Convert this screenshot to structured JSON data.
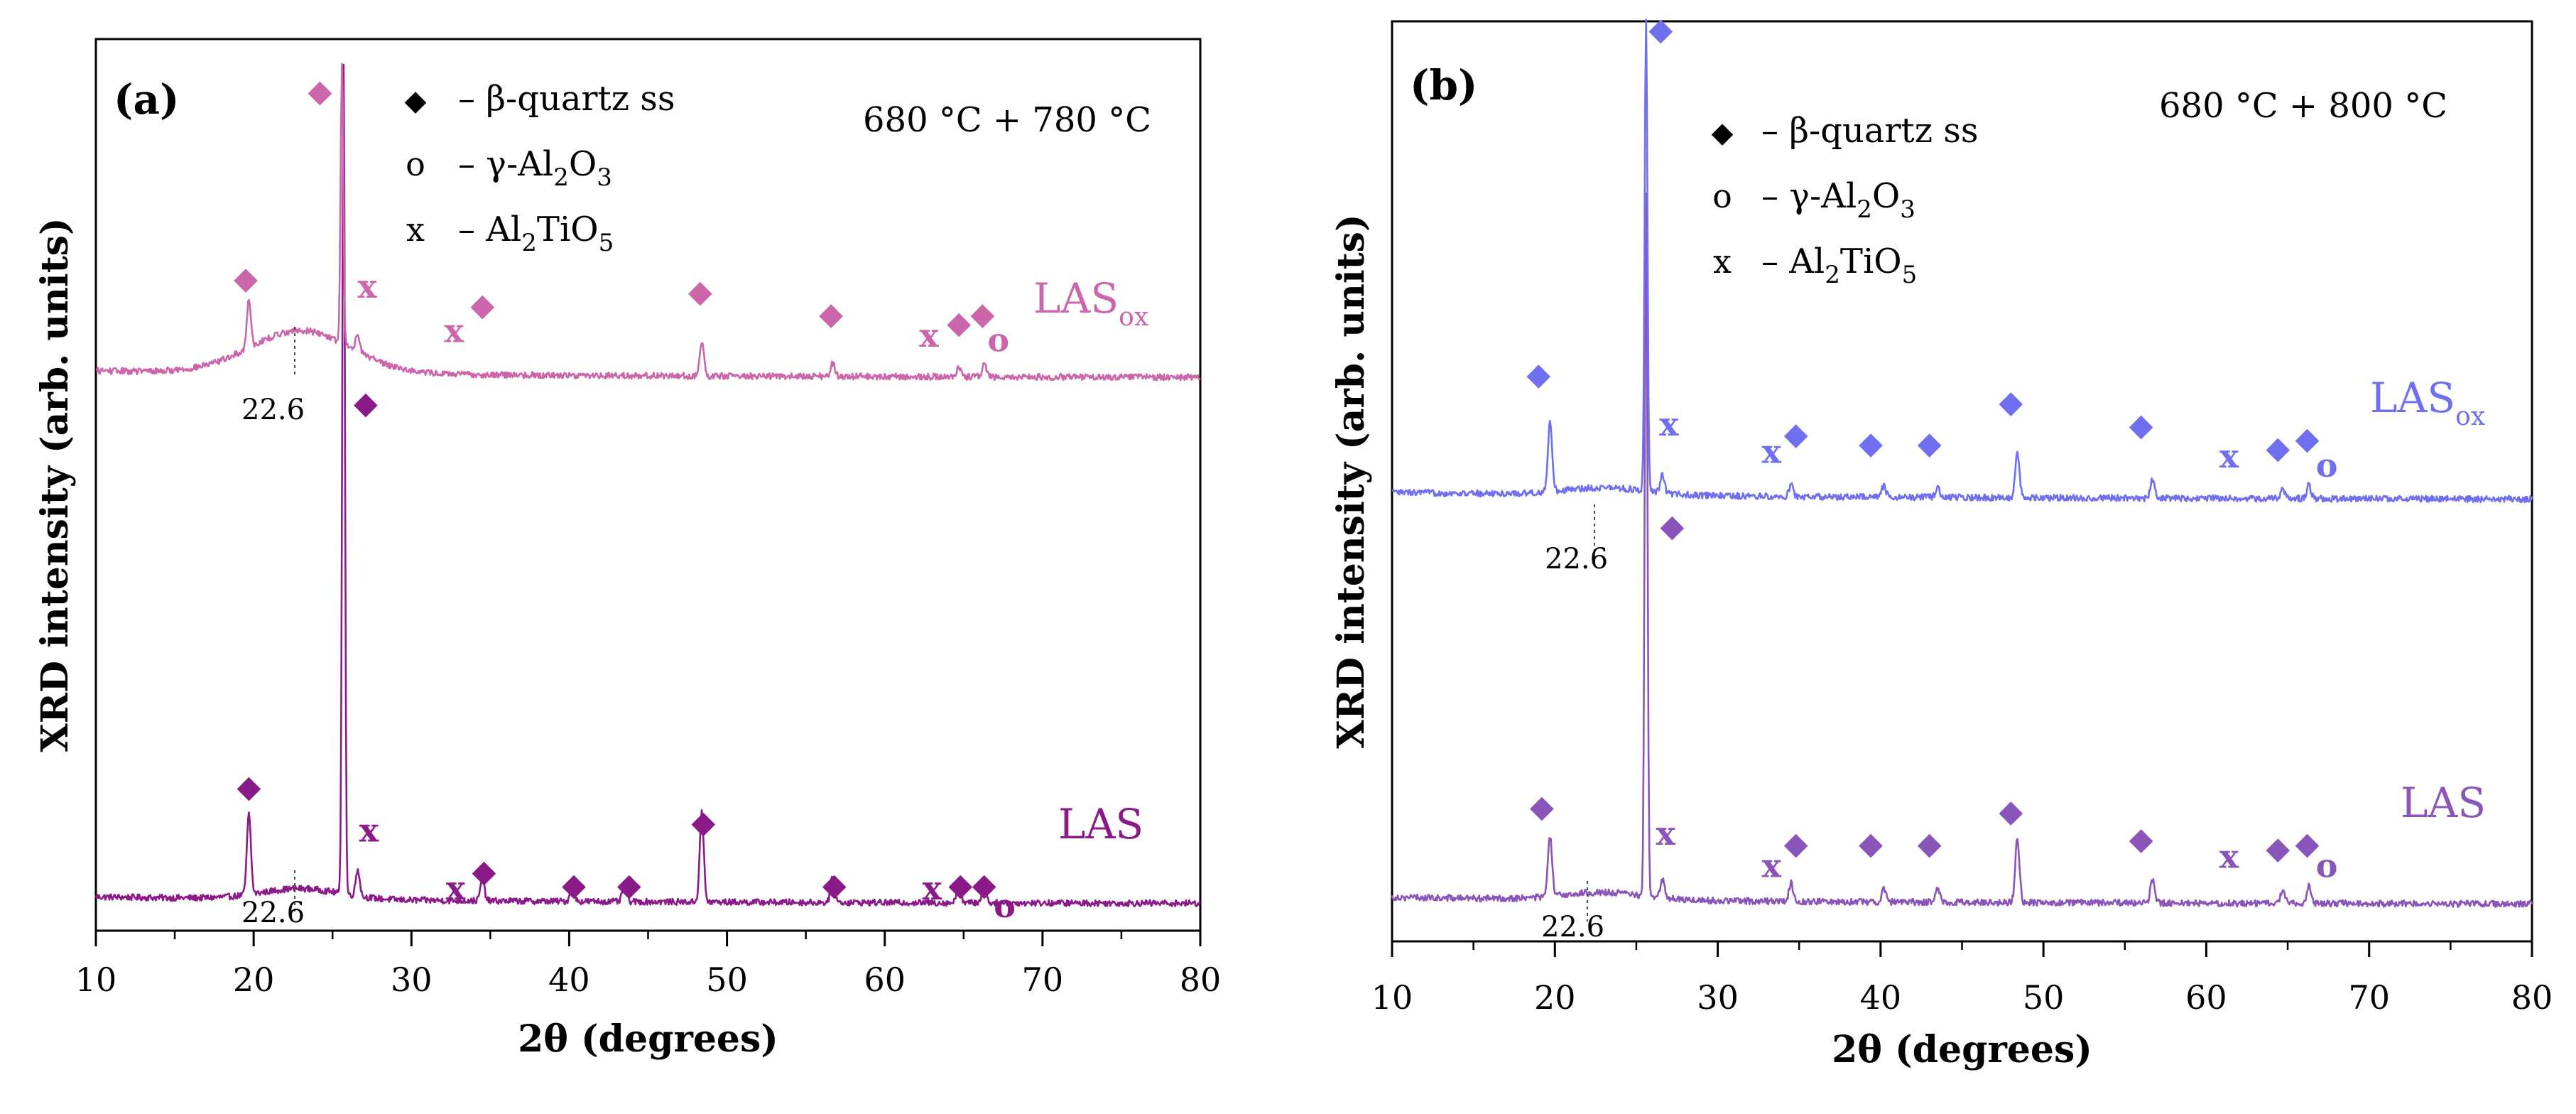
{
  "figure": {
    "panels": [
      {
        "label": "(a)",
        "condition": "680 °C + 780 °C",
        "legend": [
          {
            "symbol": "◆",
            "text_parts": [
              "– β-quartz ss"
            ]
          },
          {
            "symbol": "o",
            "text_parts": [
              "– γ-Al",
              "2",
              "O",
              "3"
            ]
          },
          {
            "symbol": "x",
            "text_parts": [
              "– Al",
              "2",
              "TiO",
              "5"
            ]
          }
        ]
      },
      {
        "label": "(b)",
        "condition": "680 °C + 800 °C",
        "legend": [
          {
            "symbol": "◆",
            "text_parts": [
              "– β-quartz ss"
            ]
          },
          {
            "symbol": "o",
            "text_parts": [
              "– γ-Al",
              "2",
              "O",
              "3"
            ]
          },
          {
            "symbol": "x",
            "text_parts": [
              "– Al",
              "2",
              "TiO",
              "5"
            ]
          }
        ]
      }
    ]
  },
  "chart_data": [
    {
      "type": "line",
      "panel": "(a)",
      "title": "680 °C + 780 °C",
      "xlabel": "2θ (degrees)",
      "ylabel": "XRD intensity (arb. units)",
      "xlim": [
        10,
        80
      ],
      "ylim": [
        0,
        100
      ],
      "xticks": [
        10,
        20,
        30,
        40,
        50,
        60,
        70,
        80
      ],
      "xtick_labels": [
        "10",
        "20",
        "30",
        "40",
        "50",
        "60",
        "70",
        "80"
      ],
      "annotation_22_6": "22.6",
      "series": [
        {
          "name": "LAS",
          "label_main": "LAS",
          "label_sub": "",
          "color": "#8b1a89",
          "baseline": 3,
          "noise": 0.35,
          "hump": {
            "center": 23,
            "width": 3.5,
            "height": 1.2
          },
          "peaks": [
            {
              "x": 19.7,
              "h": 9
            },
            {
              "x": 25.7,
              "h": 93
            },
            {
              "x": 26.6,
              "h": 3
            },
            {
              "x": 34.5,
              "h": 2.5
            },
            {
              "x": 40.2,
              "h": 2
            },
            {
              "x": 43.5,
              "h": 2
            },
            {
              "x": 48.4,
              "h": 10
            },
            {
              "x": 56.7,
              "h": 3
            },
            {
              "x": 64.7,
              "h": 2.5
            },
            {
              "x": 66.3,
              "h": 2.5
            }
          ],
          "markers": [
            {
              "x": 19.7,
              "y": 15,
              "sym": "◆"
            },
            {
              "x": 27.1,
              "y": 58,
              "sym": "◆"
            },
            {
              "x": 27.3,
              "y": 10,
              "sym": "x"
            },
            {
              "x": 32.8,
              "y": 3.5,
              "sym": "x"
            },
            {
              "x": 34.6,
              "y": 5.5,
              "sym": "◆"
            },
            {
              "x": 40.3,
              "y": 4,
              "sym": "◆"
            },
            {
              "x": 43.8,
              "y": 4,
              "sym": "◆"
            },
            {
              "x": 48.5,
              "y": 11,
              "sym": "◆"
            },
            {
              "x": 56.8,
              "y": 4,
              "sym": "◆"
            },
            {
              "x": 63.0,
              "y": 3.5,
              "sym": "x"
            },
            {
              "x": 64.8,
              "y": 4,
              "sym": "◆"
            },
            {
              "x": 66.3,
              "y": 4,
              "sym": "◆"
            },
            {
              "x": 67.6,
              "y": 1.5,
              "sym": "o"
            }
          ]
        },
        {
          "name": "LASox",
          "label_main": "LAS",
          "label_sub": "ox",
          "color": "#cc66aa",
          "baseline": 62,
          "noise": 0.35,
          "hump": {
            "center": 23,
            "width": 4.5,
            "height": 4.8
          },
          "peaks": [
            {
              "x": 19.7,
              "h": 5.5
            },
            {
              "x": 25.6,
              "h": 31
            },
            {
              "x": 26.6,
              "h": 2
            },
            {
              "x": 48.4,
              "h": 4
            },
            {
              "x": 56.7,
              "h": 1.5
            },
            {
              "x": 64.7,
              "h": 1
            },
            {
              "x": 66.3,
              "h": 1.5
            }
          ],
          "markers": [
            {
              "x": 19.5,
              "y": 72,
              "sym": "◆"
            },
            {
              "x": 24.2,
              "y": 93,
              "sym": "◆"
            },
            {
              "x": 27.2,
              "y": 71,
              "sym": "x"
            },
            {
              "x": 32.7,
              "y": 66,
              "sym": "x"
            },
            {
              "x": 34.5,
              "y": 69,
              "sym": "◆"
            },
            {
              "x": 48.3,
              "y": 70.5,
              "sym": "◆"
            },
            {
              "x": 56.6,
              "y": 68,
              "sym": "◆"
            },
            {
              "x": 62.8,
              "y": 65.5,
              "sym": "x"
            },
            {
              "x": 64.7,
              "y": 67,
              "sym": "◆"
            },
            {
              "x": 66.2,
              "y": 68,
              "sym": "◆"
            },
            {
              "x": 67.2,
              "y": 65,
              "sym": "o"
            }
          ]
        }
      ]
    },
    {
      "type": "line",
      "panel": "(b)",
      "title": "680 °C + 800 °C",
      "xlabel": "2θ (degrees)",
      "ylabel": "XRD intensity (arb. units)",
      "xlim": [
        10,
        80
      ],
      "ylim": [
        0,
        100
      ],
      "xticks": [
        10,
        20,
        30,
        40,
        50,
        60,
        70,
        80
      ],
      "xtick_labels": [
        "10",
        "20",
        "30",
        "40",
        "50",
        "60",
        "70",
        "80"
      ],
      "annotation_22_6": "22.6",
      "series": [
        {
          "name": "LAS",
          "label_main": "LAS",
          "label_sub": "",
          "color": "#8a55b8",
          "baseline": 4,
          "noise": 0.35,
          "hump": {
            "center": 23,
            "width": 3.5,
            "height": 0.8
          },
          "peaks": [
            {
              "x": 19.7,
              "h": 6.5
            },
            {
              "x": 25.6,
              "h": 76
            },
            {
              "x": 26.6,
              "h": 2
            },
            {
              "x": 34.5,
              "h": 2
            },
            {
              "x": 40.2,
              "h": 1.5
            },
            {
              "x": 43.5,
              "h": 1.5
            },
            {
              "x": 48.4,
              "h": 7
            },
            {
              "x": 56.7,
              "h": 2.5
            },
            {
              "x": 64.7,
              "h": 1.5
            },
            {
              "x": 66.3,
              "h": 2
            }
          ],
          "markers": [
            {
              "x": 19.2,
              "y": 13.5,
              "sym": "◆"
            },
            {
              "x": 27.2,
              "y": 44,
              "sym": "◆"
            },
            {
              "x": 26.8,
              "y": 10.5,
              "sym": "x"
            },
            {
              "x": 33.3,
              "y": 7,
              "sym": "x"
            },
            {
              "x": 34.8,
              "y": 9.5,
              "sym": "◆"
            },
            {
              "x": 39.4,
              "y": 9.5,
              "sym": "◆"
            },
            {
              "x": 43.0,
              "y": 9.5,
              "sym": "◆"
            },
            {
              "x": 48.0,
              "y": 13,
              "sym": "◆"
            },
            {
              "x": 56.0,
              "y": 10,
              "sym": "◆"
            },
            {
              "x": 61.4,
              "y": 8,
              "sym": "x"
            },
            {
              "x": 64.4,
              "y": 9,
              "sym": "◆"
            },
            {
              "x": 66.2,
              "y": 9.5,
              "sym": "◆"
            },
            {
              "x": 67.4,
              "y": 7,
              "sym": "o"
            }
          ]
        },
        {
          "name": "LASox",
          "label_main": "LAS",
          "label_sub": "ox",
          "color": "#6f6ff0",
          "baseline": 48,
          "noise": 0.35,
          "hump": {
            "center": 23,
            "width": 3.5,
            "height": 0.8
          },
          "peaks": [
            {
              "x": 19.7,
              "h": 7.5
            },
            {
              "x": 25.6,
              "h": 51
            },
            {
              "x": 26.6,
              "h": 2
            },
            {
              "x": 34.5,
              "h": 1.2
            },
            {
              "x": 40.2,
              "h": 1.2
            },
            {
              "x": 43.5,
              "h": 1.2
            },
            {
              "x": 48.4,
              "h": 5
            },
            {
              "x": 56.7,
              "h": 2
            },
            {
              "x": 64.7,
              "h": 1
            },
            {
              "x": 66.3,
              "h": 1.5
            }
          ],
          "markers": [
            {
              "x": 19.0,
              "y": 60.5,
              "sym": "◆"
            },
            {
              "x": 26.5,
              "y": 98,
              "sym": "◆"
            },
            {
              "x": 27.0,
              "y": 55,
              "sym": "x"
            },
            {
              "x": 33.3,
              "y": 52,
              "sym": "x"
            },
            {
              "x": 34.8,
              "y": 54,
              "sym": "◆"
            },
            {
              "x": 39.4,
              "y": 53,
              "sym": "◆"
            },
            {
              "x": 43.0,
              "y": 53,
              "sym": "◆"
            },
            {
              "x": 48.0,
              "y": 57.5,
              "sym": "◆"
            },
            {
              "x": 56.0,
              "y": 55,
              "sym": "◆"
            },
            {
              "x": 61.4,
              "y": 51.5,
              "sym": "x"
            },
            {
              "x": 64.4,
              "y": 52.5,
              "sym": "◆"
            },
            {
              "x": 66.2,
              "y": 53.5,
              "sym": "◆"
            },
            {
              "x": 67.4,
              "y": 50.5,
              "sym": "o"
            }
          ]
        }
      ]
    }
  ]
}
